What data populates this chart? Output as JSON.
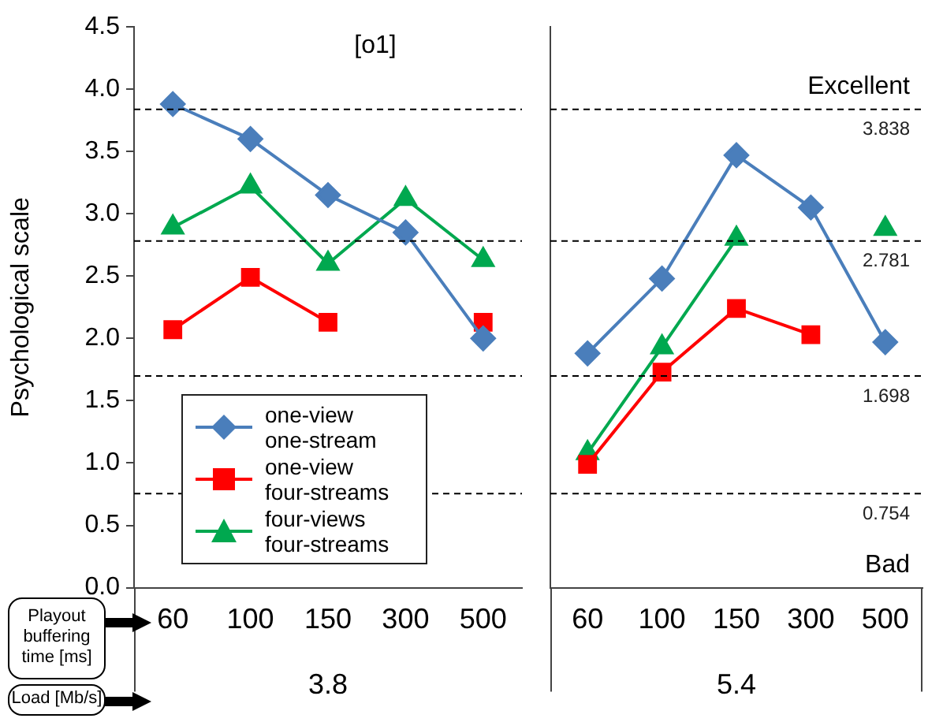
{
  "chart_data": [
    {
      "type": "line",
      "title": "[o1]",
      "ylabel": "Psychological scale",
      "xlabel": "3.8",
      "categories": [
        "60",
        "100",
        "150",
        "300",
        "500"
      ],
      "series": [
        {
          "name": "one-view one-stream",
          "color": "#4a7ebb",
          "marker": "diamond",
          "values": [
            3.88,
            3.6,
            3.15,
            2.85,
            2.0
          ]
        },
        {
          "name": "one-view four-streams",
          "color": "#ff0000",
          "marker": "square",
          "values": [
            2.07,
            2.49,
            2.13,
            null,
            2.13
          ]
        },
        {
          "name": "four-views four-streams",
          "color": "#00a84f",
          "marker": "triangle",
          "values": [
            2.89,
            3.22,
            2.6,
            3.12,
            2.63
          ]
        }
      ],
      "ylim": [
        0,
        4.5
      ],
      "yticks": [
        {
          "value": 0,
          "label": "0.0"
        },
        {
          "value": 0.5,
          "label": "0.5"
        },
        {
          "value": 1,
          "label": "1.0"
        },
        {
          "value": 1.5,
          "label": "1.5"
        },
        {
          "value": 2,
          "label": "2.0"
        },
        {
          "value": 2.5,
          "label": "2.5"
        },
        {
          "value": 3,
          "label": "3.0"
        },
        {
          "value": 3.5,
          "label": "3.5"
        },
        {
          "value": 4,
          "label": "4.0"
        },
        {
          "value": 4.5,
          "label": "4.5"
        }
      ],
      "ref_lines": [
        {
          "axis": "y",
          "value": 3.838,
          "line_style": "dashed"
        },
        {
          "axis": "y",
          "value": 2.781,
          "line_style": "dashed"
        },
        {
          "axis": "y",
          "value": 1.698,
          "line_style": "dashed"
        },
        {
          "axis": "y",
          "value": 0.754,
          "line_style": "dashed"
        }
      ],
      "annotations": [
        "Playout buffering time [ms]",
        "Load [Mb/s]"
      ],
      "legend": "bottom left",
      "grid": false
    },
    {
      "type": "line",
      "xlabel": "5.4",
      "categories": [
        "60",
        "100",
        "150",
        "300",
        "500"
      ],
      "series": [
        {
          "color": "#4a7ebb",
          "marker": "diamond",
          "values": [
            1.88,
            2.48,
            3.47,
            3.05,
            1.97
          ]
        },
        {
          "color": "#ff0000",
          "marker": "square",
          "values": [
            0.99,
            1.73,
            2.24,
            2.03,
            null
          ]
        },
        {
          "color": "#00a84f",
          "marker": "triangle",
          "values": [
            1.08,
            1.93,
            2.8,
            null,
            2.88
          ]
        }
      ],
      "ylim": [
        0,
        4.5
      ],
      "ref_lines": [
        {
          "axis": "y",
          "value": 3.838,
          "label": "3.838",
          "line_style": "dashed"
        },
        {
          "axis": "y",
          "value": 2.781,
          "label": "2.781",
          "line_style": "dashed"
        },
        {
          "axis": "y",
          "value": 1.698,
          "label": "1.698",
          "line_style": "dashed"
        },
        {
          "axis": "y",
          "value": 0.754,
          "label": "0.754",
          "line_style": "dashed"
        }
      ],
      "annotations": [
        "Excellent",
        "Bad"
      ],
      "tick_labels": "x",
      "grid": false
    }
  ]
}
